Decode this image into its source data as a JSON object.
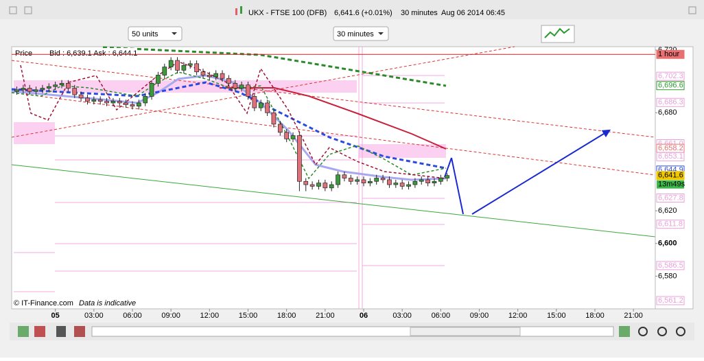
{
  "window": {
    "title": "UKX - FTSE 100 (DFB)",
    "price": "6,641.6 (+0.01%)",
    "interval": "30 minutes",
    "datetime": "Aug 06 2014 06:45"
  },
  "toolbar": {
    "units": "50 units",
    "timeframe": "30 minutes"
  },
  "chart": {
    "type": "candlestick",
    "price_label": "Price",
    "quote": "Bid : 6,639.1 Ask : 6,644.1",
    "footer": "© IT-Finance.com",
    "note": "Data is indicative",
    "x": [
      -3,
      -2.5,
      -2,
      -1.5,
      -1,
      -0.5,
      0,
      0.5,
      1,
      1.5,
      2,
      2.5,
      3,
      3.5,
      4,
      4.5,
      5,
      5.5,
      6,
      6.5,
      7,
      7.5,
      8,
      8.5,
      9,
      9.5,
      10,
      10.5,
      11,
      11.5,
      12,
      12.5,
      13,
      13.5,
      14,
      14.5,
      15,
      15.5,
      16,
      16.5,
      17,
      17.5,
      18,
      18.5,
      19,
      19.5,
      20,
      20.5,
      21,
      21.5,
      22,
      22.5,
      23,
      23.5,
      24,
      24.5,
      25,
      25.5,
      26,
      26.5,
      27,
      27.5,
      28,
      28.5,
      29,
      29.5,
      30,
      30.5
    ],
    "open": [
      6693,
      6694,
      6695,
      6693,
      6694,
      6695,
      6696,
      6697,
      6698,
      6695,
      6691,
      6689,
      6687,
      6688,
      6687,
      6686,
      6687,
      6686,
      6685,
      6684,
      6686,
      6690,
      6698,
      6703,
      6708,
      6712,
      6706,
      6709,
      6710,
      6705,
      6703,
      6702,
      6704,
      6701,
      6698,
      6695,
      6697,
      6690,
      6683,
      6686,
      6680,
      6673,
      6668,
      6664,
      6666,
      6638,
      6636,
      6635,
      6637,
      6634,
      6636,
      6642,
      6640,
      6638,
      6639,
      6637,
      6638,
      6640,
      6639,
      6636,
      6637,
      6635,
      6636,
      6638,
      6639,
      6637,
      6638,
      6640
    ],
    "high": [
      6696,
      6697,
      6697,
      6696,
      6697,
      6698,
      6699,
      6700,
      6700,
      6697,
      6693,
      6691,
      6690,
      6690,
      6689,
      6689,
      6689,
      6688,
      6687,
      6688,
      6692,
      6700,
      6705,
      6710,
      6714,
      6714,
      6711,
      6712,
      6712,
      6707,
      6705,
      6706,
      6706,
      6703,
      6700,
      6699,
      6699,
      6692,
      6688,
      6688,
      6682,
      6675,
      6670,
      6668,
      6668,
      6640,
      6638,
      6639,
      6639,
      6638,
      6644,
      6644,
      6642,
      6641,
      6641,
      6640,
      6642,
      6642,
      6641,
      6639,
      6639,
      6638,
      6640,
      6641,
      6641,
      6640,
      6642,
      6643
    ],
    "low": [
      6691,
      6692,
      6691,
      6691,
      6692,
      6693,
      6694,
      6695,
      6693,
      6689,
      6687,
      6685,
      6685,
      6685,
      6684,
      6684,
      6684,
      6683,
      6682,
      6682,
      6684,
      6688,
      6696,
      6701,
      6706,
      6704,
      6704,
      6707,
      6703,
      6701,
      6700,
      6700,
      6699,
      6696,
      6693,
      6693,
      6688,
      6681,
      6681,
      6678,
      6671,
      6666,
      6662,
      6662,
      6632,
      6632,
      6633,
      6633,
      6632,
      6632,
      6634,
      6638,
      6636,
      6636,
      6635,
      6635,
      6636,
      6637,
      6634,
      6634,
      6633,
      6633,
      6634,
      6636,
      6635,
      6635,
      6636,
      6638
    ],
    "close": [
      6694,
      6695,
      6693,
      6694,
      6695,
      6696,
      6697,
      6698,
      6695,
      6691,
      6689,
      6687,
      6688,
      6687,
      6686,
      6687,
      6686,
      6685,
      6684,
      6686,
      6690,
      6698,
      6703,
      6708,
      6712,
      6706,
      6709,
      6710,
      6705,
      6703,
      6702,
      6704,
      6701,
      6698,
      6695,
      6697,
      6690,
      6683,
      6686,
      6680,
      6673,
      6668,
      6664,
      6666,
      6638,
      6636,
      6635,
      6637,
      6634,
      6636,
      6642,
      6640,
      6638,
      6639,
      6637,
      6638,
      6640,
      6639,
      6636,
      6637,
      6635,
      6636,
      6638,
      6639,
      6637,
      6638,
      6640,
      6641.6
    ],
    "up_color": "#3c9a3c",
    "down_color": "#e0707a",
    "xlim": [
      -3.4,
      46.7
    ],
    "xticks": [
      {
        "value": 0,
        "label": "05"
      },
      {
        "value": 3,
        "label": "03:00"
      },
      {
        "value": 6,
        "label": "06:00"
      },
      {
        "value": 9,
        "label": "09:00"
      },
      {
        "value": 12,
        "label": "12:00"
      },
      {
        "value": 15,
        "label": "15:00"
      },
      {
        "value": 18,
        "label": "18:00"
      },
      {
        "value": 21,
        "label": "21:00"
      },
      {
        "value": 24,
        "label": "06"
      },
      {
        "value": 27,
        "label": "03:00"
      },
      {
        "value": 30,
        "label": "06:00"
      },
      {
        "value": 33,
        "label": "09:00"
      },
      {
        "value": 36,
        "label": "12:00"
      },
      {
        "value": 39,
        "label": "15:00"
      },
      {
        "value": 42,
        "label": "18:00"
      },
      {
        "value": 45,
        "label": "21:00"
      }
    ],
    "ylim": [
      6560,
      6720
    ],
    "yticks": [
      {
        "value": 6720,
        "label": "6,720"
      },
      {
        "value": 6680,
        "label": "6,680"
      },
      {
        "value": 6620,
        "label": "6,620"
      },
      {
        "value": 6600,
        "label": "6,600"
      },
      {
        "value": 6580,
        "label": "6,580"
      }
    ],
    "price_tags": [
      {
        "value": 6715.7,
        "label": "1 hour",
        "color": "#e87070"
      },
      {
        "value": 6702.3,
        "label": "6,702.3",
        "color": "#e8a0d8"
      },
      {
        "value": 6696.6,
        "label": "6,696.6",
        "color": "#2a9a2a"
      },
      {
        "value": 6686.3,
        "label": "6,686.3",
        "color": "#e8a0d8"
      },
      {
        "value": 6661.0,
        "label": "6,661.0",
        "color": "#e8a0d8"
      },
      {
        "value": 6658.2,
        "label": "6,658.2",
        "color": "#e87070"
      },
      {
        "value": 6653.1,
        "label": "6,653.1",
        "color": "#e8a0d8"
      },
      {
        "value": 6644.9,
        "label": "6,644.9",
        "color": "#3050e0"
      },
      {
        "value": 6641.6,
        "label": "6,641.6",
        "color": "#f0c800"
      },
      {
        "value": 6627.8,
        "label": "6,627.8",
        "color": "#e8a0d8"
      },
      {
        "value": 6611.8,
        "label": "6,611.8",
        "color": "#e8a0d8"
      },
      {
        "value": 6586.5,
        "label": "6,586.5",
        "color": "#e8a0d8"
      },
      {
        "value": 6561.2,
        "label": "6,561.2",
        "color": "#e8a0d8"
      }
    ],
    "countdown": "13m49s"
  }
}
